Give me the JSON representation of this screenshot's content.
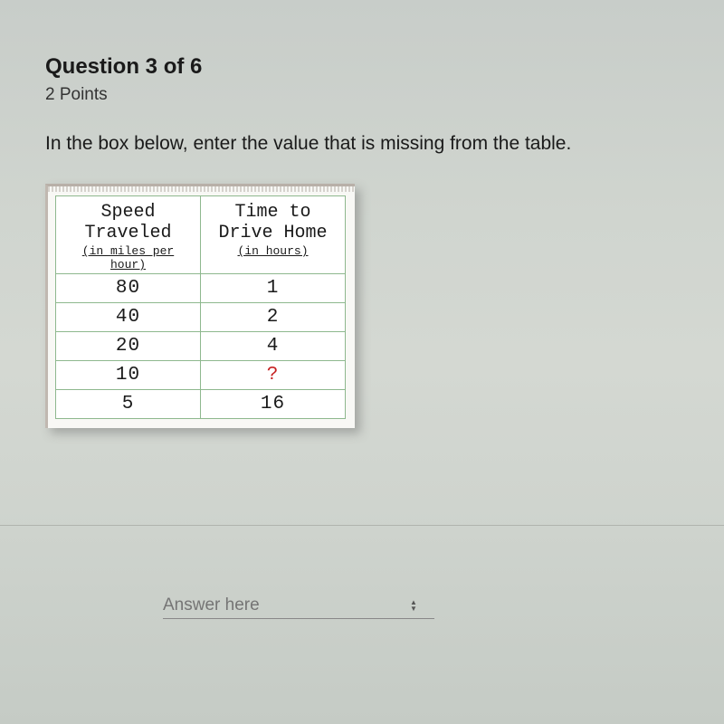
{
  "question": {
    "title": "Question 3 of 6",
    "points": "2 Points",
    "prompt": "In the box below, enter the value that is missing from the table."
  },
  "table": {
    "type": "table",
    "border_color": "#8eb88e",
    "background_color": "#ffffff",
    "wrapper_background": "#f8f8f5",
    "font_family": "Courier New",
    "header_fontsize": 20,
    "subheader_fontsize": 13,
    "cell_fontsize": 21,
    "missing_color": "#c62020",
    "columns": [
      {
        "header_main": "Speed Traveled",
        "header_sub": "(in miles per hour)",
        "width": 160
      },
      {
        "header_main": "Time to Drive Home",
        "header_sub": "(in hours)",
        "width": 160
      }
    ],
    "rows": [
      {
        "speed": "80",
        "time": "1",
        "time_missing": false
      },
      {
        "speed": "40",
        "time": "2",
        "time_missing": false
      },
      {
        "speed": "20",
        "time": "4",
        "time_missing": false
      },
      {
        "speed": "10",
        "time": "?",
        "time_missing": true
      },
      {
        "speed": "5",
        "time": "16",
        "time_missing": false
      }
    ]
  },
  "answer": {
    "placeholder": "Answer here"
  },
  "page": {
    "background_gradient": [
      "#c8cdc9",
      "#d0d5cf",
      "#d4d8d2",
      "#cfd4ce",
      "#c5cbc5"
    ]
  }
}
